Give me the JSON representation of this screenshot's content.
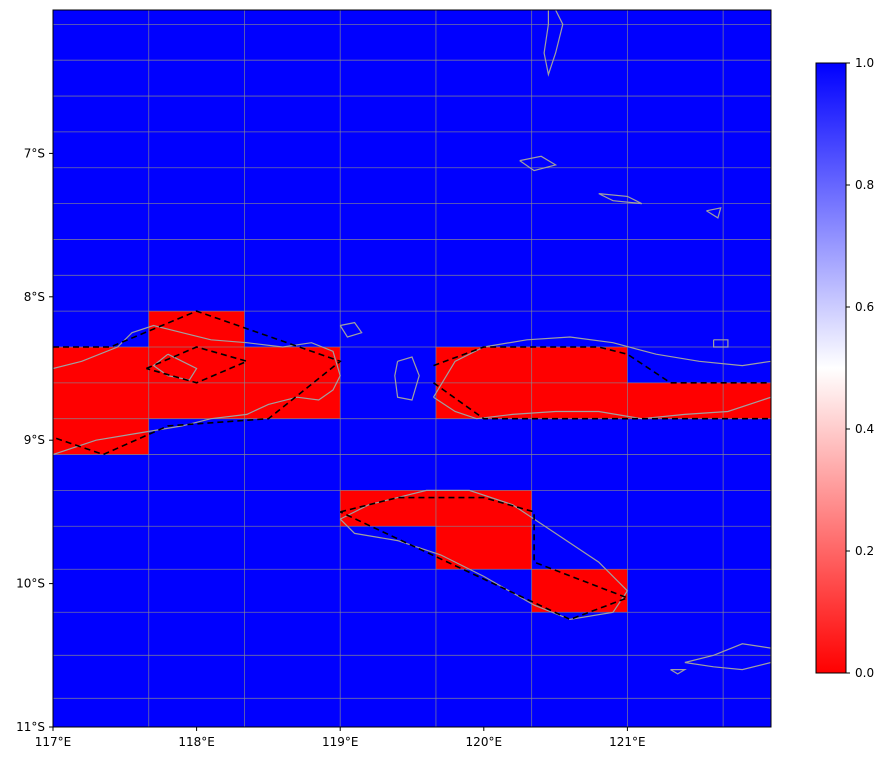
{
  "map": {
    "extent": {
      "lon_min": 117.0,
      "lon_max": 122.0,
      "lat_min": -11.0,
      "lat_max": -6.0
    },
    "grid_lons": [
      117.0,
      117.6667,
      118.3333,
      119.0,
      119.6667,
      120.3333,
      121.0,
      121.6667
    ],
    "grid_lats": [
      -6.1,
      -6.35,
      -6.6,
      -6.85,
      -7.1,
      -7.35,
      -7.6,
      -7.85,
      -8.1,
      -8.35,
      -8.6,
      -8.85,
      -9.1,
      -9.35,
      -9.6,
      -9.9,
      -10.2,
      -10.5,
      -10.8
    ],
    "background_value": 1.0,
    "cells": [
      {
        "lon": [
          117.6667,
          118.3333
        ],
        "lat": [
          -8.35,
          -8.1
        ],
        "value": 0.0
      },
      {
        "lon": [
          117.0,
          117.6667
        ],
        "lat": [
          -8.6,
          -8.35
        ],
        "value": 0.0
      },
      {
        "lon": [
          117.6667,
          118.3333
        ],
        "lat": [
          -8.6,
          -8.35
        ],
        "value": 0.0
      },
      {
        "lon": [
          118.3333,
          119.0
        ],
        "lat": [
          -8.6,
          -8.35
        ],
        "value": 0.0
      },
      {
        "lon": [
          119.6667,
          120.3333
        ],
        "lat": [
          -8.6,
          -8.35
        ],
        "value": 0.0
      },
      {
        "lon": [
          120.3333,
          121.0
        ],
        "lat": [
          -8.6,
          -8.35
        ],
        "value": 0.0
      },
      {
        "lon": [
          117.0,
          117.6667
        ],
        "lat": [
          -8.85,
          -8.6
        ],
        "value": 0.0
      },
      {
        "lon": [
          117.6667,
          118.3333
        ],
        "lat": [
          -8.85,
          -8.6
        ],
        "value": 0.0
      },
      {
        "lon": [
          118.3333,
          119.0
        ],
        "lat": [
          -8.85,
          -8.6
        ],
        "value": 0.0
      },
      {
        "lon": [
          119.6667,
          120.3333
        ],
        "lat": [
          -8.85,
          -8.6
        ],
        "value": 0.0
      },
      {
        "lon": [
          120.3333,
          121.0
        ],
        "lat": [
          -8.85,
          -8.6
        ],
        "value": 0.0
      },
      {
        "lon": [
          121.0,
          121.6667
        ],
        "lat": [
          -8.85,
          -8.6
        ],
        "value": 0.0
      },
      {
        "lon": [
          121.6667,
          122.0
        ],
        "lat": [
          -8.85,
          -8.6
        ],
        "value": 0.0
      },
      {
        "lon": [
          117.0,
          117.6667
        ],
        "lat": [
          -9.1,
          -8.85
        ],
        "value": 0.0
      },
      {
        "lon": [
          119.0,
          119.6667
        ],
        "lat": [
          -9.6,
          -9.35
        ],
        "value": 0.0
      },
      {
        "lon": [
          119.6667,
          120.3333
        ],
        "lat": [
          -9.6,
          -9.35
        ],
        "value": 0.0
      },
      {
        "lon": [
          119.6667,
          120.3333
        ],
        "lat": [
          -9.9,
          -9.6
        ],
        "value": 0.0
      },
      {
        "lon": [
          120.3333,
          121.0
        ],
        "lat": [
          -10.2,
          -9.9
        ],
        "value": 0.0
      }
    ],
    "coastlines": [
      [
        [
          117.0,
          -8.5
        ],
        [
          117.2,
          -8.45
        ],
        [
          117.45,
          -8.35
        ],
        [
          117.55,
          -8.25
        ],
        [
          117.7,
          -8.2
        ],
        [
          117.9,
          -8.25
        ],
        [
          118.1,
          -8.3
        ],
        [
          118.35,
          -8.32
        ],
        [
          118.6,
          -8.35
        ],
        [
          118.8,
          -8.32
        ],
        [
          118.95,
          -8.38
        ],
        [
          119.0,
          -8.55
        ],
        [
          118.95,
          -8.65
        ],
        [
          118.85,
          -8.72
        ],
        [
          118.7,
          -8.7
        ],
        [
          118.5,
          -8.75
        ],
        [
          118.35,
          -8.82
        ],
        [
          118.1,
          -8.85
        ],
        [
          117.9,
          -8.9
        ],
        [
          117.6,
          -8.95
        ],
        [
          117.3,
          -9.0
        ],
        [
          117.0,
          -9.1
        ]
      ],
      [
        [
          117.8,
          -8.4
        ],
        [
          117.9,
          -8.45
        ],
        [
          118.0,
          -8.5
        ],
        [
          117.95,
          -8.58
        ],
        [
          117.8,
          -8.55
        ],
        [
          117.7,
          -8.48
        ],
        [
          117.8,
          -8.4
        ]
      ],
      [
        [
          119.0,
          -8.2
        ],
        [
          119.1,
          -8.18
        ],
        [
          119.15,
          -8.25
        ],
        [
          119.05,
          -8.28
        ],
        [
          119.0,
          -8.2
        ]
      ],
      [
        [
          119.4,
          -8.45
        ],
        [
          119.5,
          -8.42
        ],
        [
          119.55,
          -8.55
        ],
        [
          119.5,
          -8.72
        ],
        [
          119.4,
          -8.7
        ],
        [
          119.38,
          -8.55
        ],
        [
          119.4,
          -8.45
        ]
      ],
      [
        [
          119.65,
          -8.7
        ],
        [
          119.8,
          -8.45
        ],
        [
          120.0,
          -8.35
        ],
        [
          120.3,
          -8.3
        ],
        [
          120.6,
          -8.28
        ],
        [
          120.9,
          -8.32
        ],
        [
          121.2,
          -8.4
        ],
        [
          121.5,
          -8.45
        ],
        [
          121.8,
          -8.48
        ],
        [
          122.0,
          -8.45
        ],
        [
          122.0,
          -8.7
        ],
        [
          121.7,
          -8.8
        ],
        [
          121.4,
          -8.82
        ],
        [
          121.1,
          -8.85
        ],
        [
          120.8,
          -8.8
        ],
        [
          120.5,
          -8.8
        ],
        [
          120.2,
          -8.82
        ],
        [
          119.95,
          -8.85
        ],
        [
          119.8,
          -8.8
        ],
        [
          119.65,
          -8.7
        ]
      ],
      [
        [
          121.6,
          -8.3
        ],
        [
          121.7,
          -8.3
        ],
        [
          121.7,
          -8.35
        ],
        [
          121.6,
          -8.35
        ],
        [
          121.6,
          -8.3
        ]
      ],
      [
        [
          119.0,
          -9.55
        ],
        [
          119.2,
          -9.45
        ],
        [
          119.6,
          -9.35
        ],
        [
          119.9,
          -9.35
        ],
        [
          120.2,
          -9.45
        ],
        [
          120.5,
          -9.65
        ],
        [
          120.8,
          -9.85
        ],
        [
          121.0,
          -10.05
        ],
        [
          120.9,
          -10.2
        ],
        [
          120.6,
          -10.25
        ],
        [
          120.35,
          -10.15
        ],
        [
          120.0,
          -9.95
        ],
        [
          119.7,
          -9.8
        ],
        [
          119.4,
          -9.7
        ],
        [
          119.1,
          -9.65
        ],
        [
          119.0,
          -9.55
        ]
      ],
      [
        [
          120.5,
          -6.0
        ],
        [
          120.55,
          -6.1
        ],
        [
          120.5,
          -6.3
        ],
        [
          120.45,
          -6.45
        ],
        [
          120.42,
          -6.3
        ],
        [
          120.45,
          -6.1
        ],
        [
          120.45,
          -6.0
        ]
      ],
      [
        [
          120.25,
          -7.05
        ],
        [
          120.4,
          -7.02
        ],
        [
          120.5,
          -7.08
        ],
        [
          120.35,
          -7.12
        ],
        [
          120.25,
          -7.05
        ]
      ],
      [
        [
          120.8,
          -7.28
        ],
        [
          121.0,
          -7.3
        ],
        [
          121.1,
          -7.35
        ],
        [
          120.9,
          -7.33
        ],
        [
          120.8,
          -7.28
        ]
      ],
      [
        [
          121.55,
          -7.4
        ],
        [
          121.65,
          -7.38
        ],
        [
          121.63,
          -7.45
        ],
        [
          121.55,
          -7.4
        ]
      ],
      [
        [
          121.4,
          -10.55
        ],
        [
          121.6,
          -10.5
        ],
        [
          121.8,
          -10.42
        ],
        [
          122.0,
          -10.45
        ],
        [
          122.0,
          -10.55
        ],
        [
          121.8,
          -10.6
        ],
        [
          121.6,
          -10.58
        ],
        [
          121.4,
          -10.55
        ]
      ],
      [
        [
          121.3,
          -10.6
        ],
        [
          121.4,
          -10.6
        ],
        [
          121.35,
          -10.63
        ],
        [
          121.3,
          -10.6
        ]
      ]
    ],
    "dashed_outlines": [
      [
        [
          117.0,
          -8.35
        ],
        [
          117.4,
          -8.35
        ],
        [
          118.0,
          -8.1
        ],
        [
          119.0,
          -8.45
        ],
        [
          118.5,
          -8.85
        ],
        [
          117.8,
          -8.9
        ],
        [
          117.35,
          -9.1
        ],
        [
          117.0,
          -8.98
        ]
      ],
      [
        [
          117.65,
          -8.5
        ],
        [
          118.0,
          -8.35
        ],
        [
          118.35,
          -8.45
        ],
        [
          118.0,
          -8.6
        ],
        [
          117.65,
          -8.5
        ]
      ],
      [
        [
          119.65,
          -8.48
        ],
        [
          120.0,
          -8.35
        ],
        [
          120.3,
          -8.35
        ],
        [
          120.8,
          -8.35
        ],
        [
          121.0,
          -8.4
        ],
        [
          121.3,
          -8.6
        ],
        [
          122.0,
          -8.6
        ]
      ],
      [
        [
          119.65,
          -8.6
        ],
        [
          120.0,
          -8.85
        ],
        [
          120.5,
          -8.85
        ],
        [
          122.0,
          -8.85
        ]
      ],
      [
        [
          119.0,
          -9.5
        ],
        [
          119.4,
          -9.4
        ],
        [
          120.0,
          -9.4
        ],
        [
          120.35,
          -9.5
        ],
        [
          120.35,
          -9.85
        ],
        [
          121.0,
          -10.1
        ],
        [
          120.6,
          -10.25
        ],
        [
          119.0,
          -9.5
        ]
      ]
    ]
  },
  "axes": {
    "x_ticks": [
      {
        "value": 117,
        "label": "117°E"
      },
      {
        "value": 118,
        "label": "118°E"
      },
      {
        "value": 119,
        "label": "119°E"
      },
      {
        "value": 120,
        "label": "120°E"
      },
      {
        "value": 121,
        "label": "121°E"
      }
    ],
    "y_ticks": [
      {
        "value": -7,
        "label": "7°S"
      },
      {
        "value": -8,
        "label": "8°S"
      },
      {
        "value": -9,
        "label": "9°S"
      },
      {
        "value": -10,
        "label": "10°S"
      },
      {
        "value": -11,
        "label": "11°S"
      }
    ]
  },
  "colorbar": {
    "min": 0.0,
    "max": 1.0,
    "colors": {
      "low": "#ff0000",
      "mid": "#ffffff",
      "high": "#0000ff"
    },
    "ticks": [
      {
        "value": 0.0,
        "label": "0.0"
      },
      {
        "value": 0.2,
        "label": "0.2"
      },
      {
        "value": 0.4,
        "label": "0.4"
      },
      {
        "value": 0.6,
        "label": "0.6"
      },
      {
        "value": 0.8,
        "label": "0.8"
      },
      {
        "value": 1.0,
        "label": "1.0"
      }
    ]
  },
  "style": {
    "coastline_color": "#a0a0a0",
    "gridline_color": "#8c8c8c",
    "outline_color": "#000000"
  }
}
